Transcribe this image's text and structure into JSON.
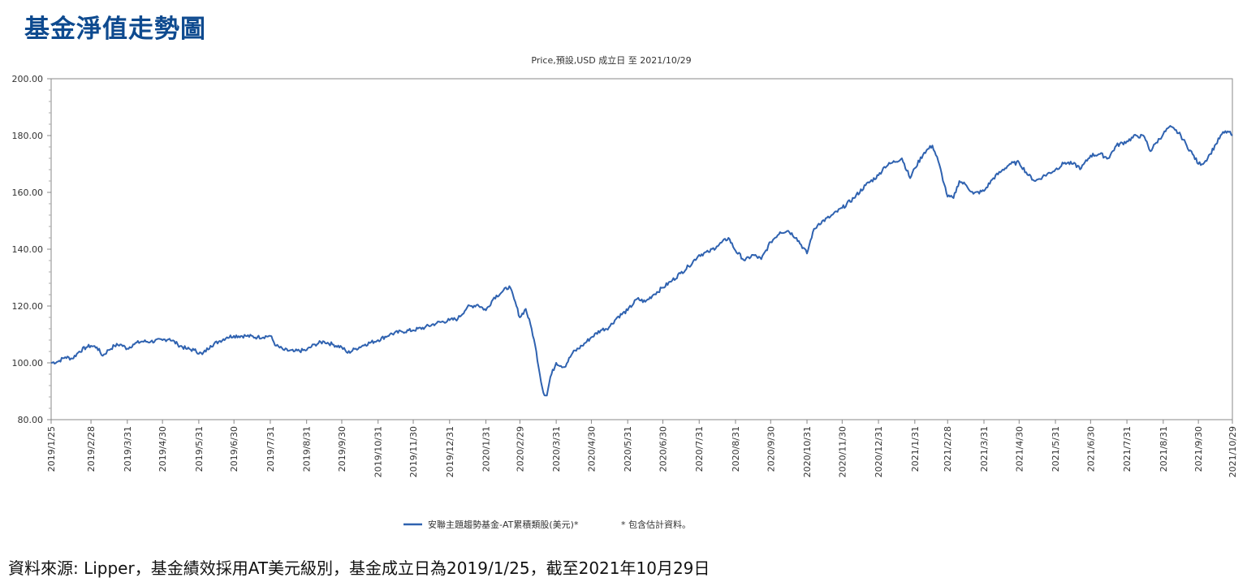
{
  "page": {
    "title": "基金淨值走勢圖"
  },
  "source_note": "資料來源: Lipper，基金績效採用AT美元級別，基金成立日為2019/1/25，截至2021年10月29日",
  "colors": {
    "title": "#0e4a8f",
    "line": "#2f62b0",
    "axis": "#888888",
    "text": "#333333"
  },
  "chart_data": {
    "type": "line",
    "title": "Price,預設,USD 成立日 至 2021/10/29",
    "xlabel": "",
    "ylabel": "",
    "ylim": [
      80,
      200
    ],
    "y_ticks": [
      "80.00",
      "100.00",
      "120.00",
      "140.00",
      "160.00",
      "180.00",
      "200.00"
    ],
    "x_range": [
      "2019-01-25",
      "2021-10-29"
    ],
    "x_ticks": [
      "2019/1/25",
      "2019/2/28",
      "2019/3/31",
      "2019/4/30",
      "2019/5/31",
      "2019/6/30",
      "2019/7/31",
      "2019/8/31",
      "2019/9/30",
      "2019/10/31",
      "2019/11/30",
      "2019/12/31",
      "2020/1/31",
      "2020/2/29",
      "2020/3/31",
      "2020/4/30",
      "2020/5/31",
      "2020/6/30",
      "2020/7/31",
      "2020/8/31",
      "2020/9/30",
      "2020/10/31",
      "2020/11/30",
      "2020/12/31",
      "2021/1/31",
      "2021/2/28",
      "2021/3/31",
      "2021/4/30",
      "2021/5/31",
      "2021/6/30",
      "2021/7/31",
      "2021/8/31",
      "2021/9/30",
      "2021/10/29"
    ],
    "legend": {
      "placement": "bottom",
      "entries": [
        "安聯主題趨勢基金-AT累積類股(美元)*",
        "* 包含估計資料。"
      ]
    },
    "series": [
      {
        "name": "安聯主題趨勢基金-AT累積類股(美元)*",
        "color": "#2f62b0",
        "points": [
          [
            "2019-01-25",
            100.0
          ],
          [
            "2019-01-31",
            100.5
          ],
          [
            "2019-02-06",
            102.0
          ],
          [
            "2019-02-12",
            101.5
          ],
          [
            "2019-02-18",
            104.0
          ],
          [
            "2019-02-24",
            105.5
          ],
          [
            "2019-02-28",
            106.0
          ],
          [
            "2019-03-05",
            105.5
          ],
          [
            "2019-03-10",
            102.5
          ],
          [
            "2019-03-15",
            104.5
          ],
          [
            "2019-03-20",
            106.0
          ],
          [
            "2019-03-25",
            106.5
          ],
          [
            "2019-03-31",
            105.0
          ],
          [
            "2019-04-05",
            106.5
          ],
          [
            "2019-04-12",
            107.5
          ],
          [
            "2019-04-20",
            107.5
          ],
          [
            "2019-04-30",
            108.0
          ],
          [
            "2019-05-06",
            108.5
          ],
          [
            "2019-05-13",
            106.5
          ],
          [
            "2019-05-20",
            105.0
          ],
          [
            "2019-05-27",
            104.5
          ],
          [
            "2019-06-03",
            103.0
          ],
          [
            "2019-06-10",
            106.0
          ],
          [
            "2019-06-17",
            107.5
          ],
          [
            "2019-06-24",
            109.0
          ],
          [
            "2019-06-30",
            109.5
          ],
          [
            "2019-07-10",
            109.5
          ],
          [
            "2019-07-20",
            109.0
          ],
          [
            "2019-07-31",
            109.5
          ],
          [
            "2019-08-05",
            106.0
          ],
          [
            "2019-08-12",
            104.5
          ],
          [
            "2019-08-20",
            104.0
          ],
          [
            "2019-08-31",
            104.5
          ],
          [
            "2019-09-07",
            106.5
          ],
          [
            "2019-09-15",
            107.5
          ],
          [
            "2019-09-22",
            106.5
          ],
          [
            "2019-09-30",
            105.5
          ],
          [
            "2019-10-05",
            103.5
          ],
          [
            "2019-10-12",
            105.0
          ],
          [
            "2019-10-20",
            106.5
          ],
          [
            "2019-10-31",
            108.0
          ],
          [
            "2019-11-10",
            110.0
          ],
          [
            "2019-11-20",
            111.0
          ],
          [
            "2019-11-30",
            111.5
          ],
          [
            "2019-12-10",
            112.5
          ],
          [
            "2019-12-20",
            114.0
          ],
          [
            "2019-12-31",
            115.0
          ],
          [
            "2020-01-07",
            115.5
          ],
          [
            "2020-01-15",
            119.5
          ],
          [
            "2020-01-24",
            120.5
          ],
          [
            "2020-01-31",
            118.5
          ],
          [
            "2020-02-07",
            123.0
          ],
          [
            "2020-02-14",
            125.0
          ],
          [
            "2020-02-20",
            127.0
          ],
          [
            "2020-02-24",
            122.5
          ],
          [
            "2020-02-29",
            116.0
          ],
          [
            "2020-03-05",
            119.0
          ],
          [
            "2020-03-10",
            112.0
          ],
          [
            "2020-03-14",
            104.0
          ],
          [
            "2020-03-17",
            96.0
          ],
          [
            "2020-03-20",
            89.5
          ],
          [
            "2020-03-23",
            88.5
          ],
          [
            "2020-03-26",
            95.0
          ],
          [
            "2020-03-31",
            100.0
          ],
          [
            "2020-04-07",
            98.5
          ],
          [
            "2020-04-14",
            103.5
          ],
          [
            "2020-04-22",
            106.0
          ],
          [
            "2020-04-30",
            109.0
          ],
          [
            "2020-05-08",
            111.5
          ],
          [
            "2020-05-15",
            112.5
          ],
          [
            "2020-05-22",
            116.0
          ],
          [
            "2020-05-31",
            118.5
          ],
          [
            "2020-06-08",
            122.5
          ],
          [
            "2020-06-15",
            121.5
          ],
          [
            "2020-06-22",
            124.0
          ],
          [
            "2020-06-30",
            126.5
          ],
          [
            "2020-07-08",
            129.0
          ],
          [
            "2020-07-15",
            131.5
          ],
          [
            "2020-07-22",
            134.0
          ],
          [
            "2020-07-31",
            138.0
          ],
          [
            "2020-08-08",
            139.0
          ],
          [
            "2020-08-15",
            141.0
          ],
          [
            "2020-08-25",
            144.0
          ],
          [
            "2020-08-31",
            139.5
          ],
          [
            "2020-09-08",
            136.0
          ],
          [
            "2020-09-15",
            138.0
          ],
          [
            "2020-09-22",
            136.5
          ],
          [
            "2020-09-30",
            142.5
          ],
          [
            "2020-10-08",
            146.0
          ],
          [
            "2020-10-15",
            146.5
          ],
          [
            "2020-10-22",
            144.0
          ],
          [
            "2020-10-31",
            138.5
          ],
          [
            "2020-11-05",
            146.0
          ],
          [
            "2020-11-10",
            149.0
          ],
          [
            "2020-11-20",
            151.5
          ],
          [
            "2020-11-30",
            154.5
          ],
          [
            "2020-12-10",
            158.0
          ],
          [
            "2020-12-20",
            162.5
          ],
          [
            "2020-12-31",
            166.0
          ],
          [
            "2021-01-05",
            169.0
          ],
          [
            "2021-01-12",
            170.5
          ],
          [
            "2021-01-20",
            172.0
          ],
          [
            "2021-01-27",
            165.0
          ],
          [
            "2021-01-31",
            168.5
          ],
          [
            "2021-02-08",
            174.0
          ],
          [
            "2021-02-15",
            176.5
          ],
          [
            "2021-02-20",
            171.0
          ],
          [
            "2021-02-25",
            163.0
          ],
          [
            "2021-02-28",
            158.5
          ],
          [
            "2021-03-05",
            158.0
          ],
          [
            "2021-03-10",
            164.0
          ],
          [
            "2021-03-16",
            162.5
          ],
          [
            "2021-03-22",
            159.5
          ],
          [
            "2021-03-31",
            160.5
          ],
          [
            "2021-04-08",
            165.0
          ],
          [
            "2021-04-15",
            167.5
          ],
          [
            "2021-04-22",
            170.0
          ],
          [
            "2021-04-30",
            170.5
          ],
          [
            "2021-05-08",
            166.0
          ],
          [
            "2021-05-14",
            164.0
          ],
          [
            "2021-05-20",
            165.5
          ],
          [
            "2021-05-31",
            168.0
          ],
          [
            "2021-06-08",
            170.5
          ],
          [
            "2021-06-15",
            170.0
          ],
          [
            "2021-06-22",
            168.5
          ],
          [
            "2021-06-30",
            173.0
          ],
          [
            "2021-07-08",
            173.5
          ],
          [
            "2021-07-15",
            172.0
          ],
          [
            "2021-07-22",
            176.5
          ],
          [
            "2021-07-31",
            178.0
          ],
          [
            "2021-08-08",
            180.0
          ],
          [
            "2021-08-15",
            179.5
          ],
          [
            "2021-08-20",
            174.5
          ],
          [
            "2021-08-25",
            177.5
          ],
          [
            "2021-08-31",
            180.5
          ],
          [
            "2021-09-05",
            183.0
          ],
          [
            "2021-09-10",
            182.0
          ],
          [
            "2021-09-15",
            180.0
          ],
          [
            "2021-09-20",
            176.5
          ],
          [
            "2021-09-25",
            173.5
          ],
          [
            "2021-09-30",
            170.0
          ],
          [
            "2021-10-05",
            170.5
          ],
          [
            "2021-10-10",
            173.5
          ],
          [
            "2021-10-15",
            177.0
          ],
          [
            "2021-10-20",
            180.5
          ],
          [
            "2021-10-25",
            181.5
          ],
          [
            "2021-10-29",
            180.0
          ]
        ]
      }
    ]
  }
}
